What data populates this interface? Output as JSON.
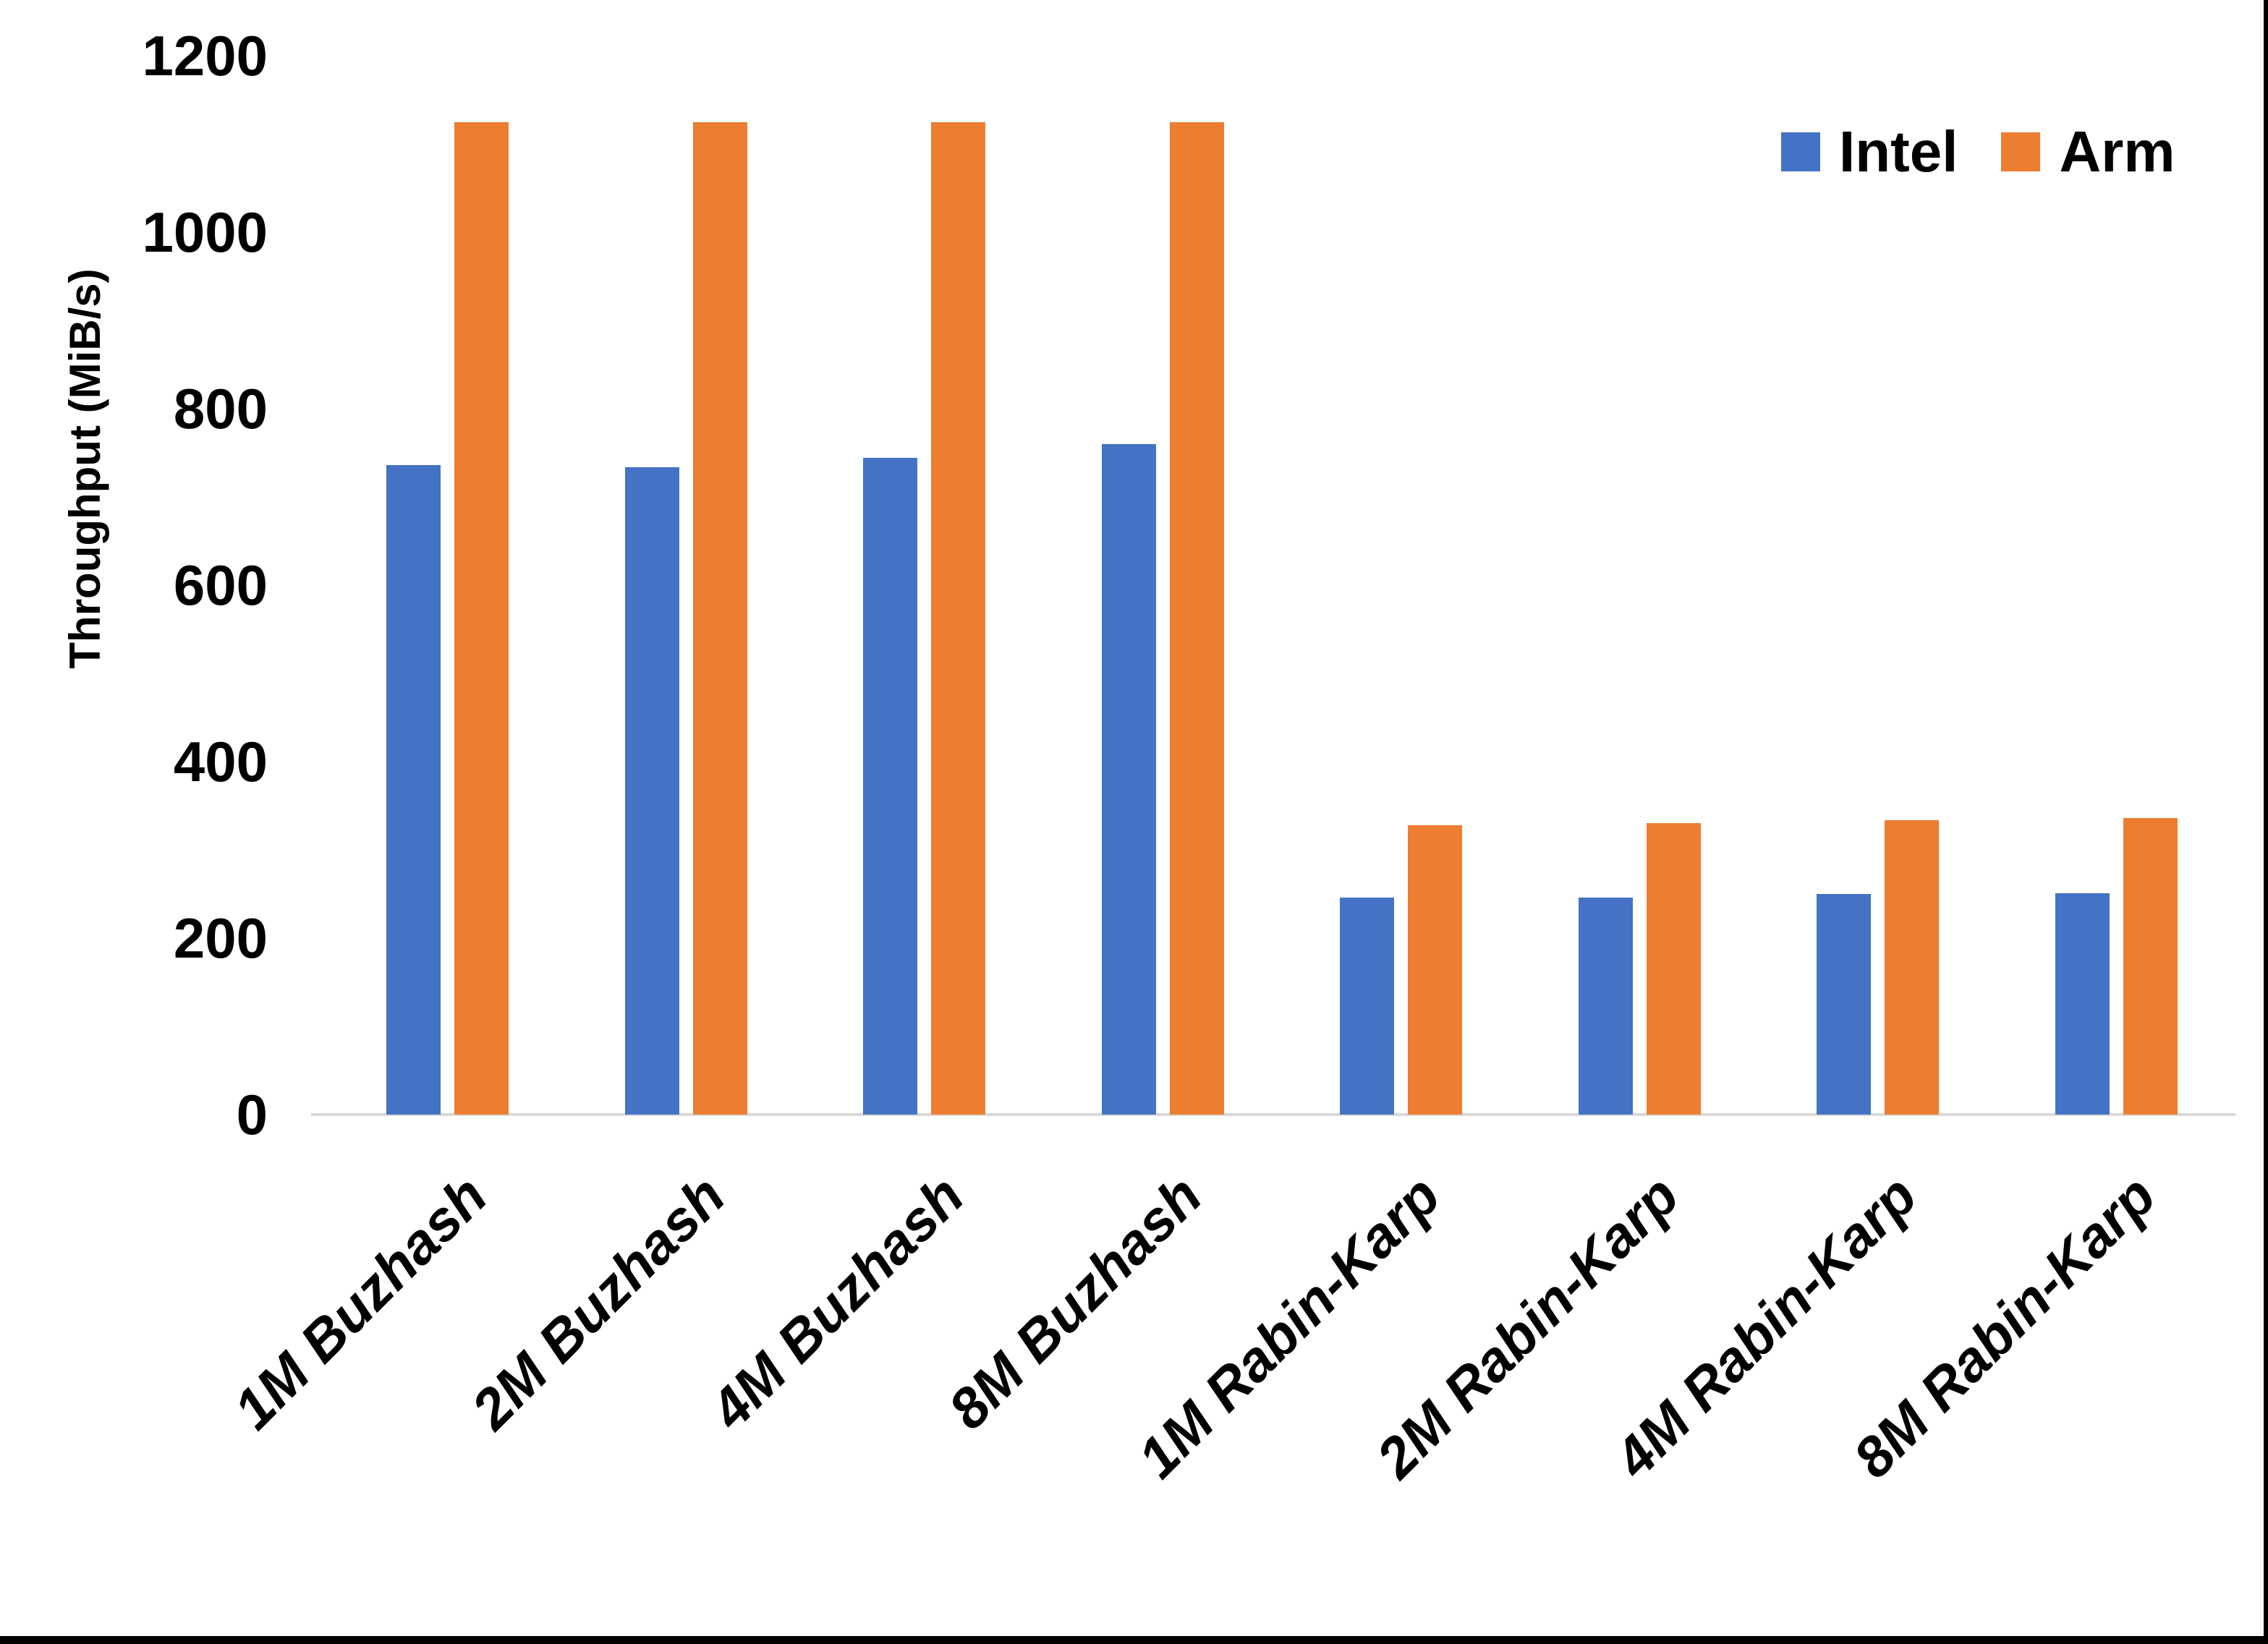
{
  "chart_data": {
    "type": "bar",
    "title": "",
    "xlabel": "",
    "ylabel": "Throughput (MiB/s)",
    "ylim": [
      0,
      1200
    ],
    "yticks": [
      0,
      200,
      400,
      600,
      800,
      1000,
      1200
    ],
    "grid": false,
    "legend_position": "top-right",
    "categories": [
      "1M Buzhash",
      "2M Buzhash",
      "4M Buzhash",
      "8M Buzhash",
      "1M Rabin-Karp",
      "2M Rabin-Karp",
      "4M Rabin-Karp",
      "8M Rabin-Karp"
    ],
    "series": [
      {
        "name": "Intel",
        "color": "#4472C4",
        "values": [
          736,
          734,
          744,
          760,
          246,
          246,
          250,
          251
        ]
      },
      {
        "name": "Arm",
        "color": "#ED7D31",
        "values": [
          1125,
          1125,
          1125,
          1125,
          328,
          330,
          334,
          336
        ]
      }
    ]
  },
  "colors": {
    "intel": "#4472C4",
    "arm": "#ED7D31",
    "axis_line": "#d9d9d9",
    "text": "#000000",
    "frame": "#000000",
    "background": "#ffffff"
  }
}
